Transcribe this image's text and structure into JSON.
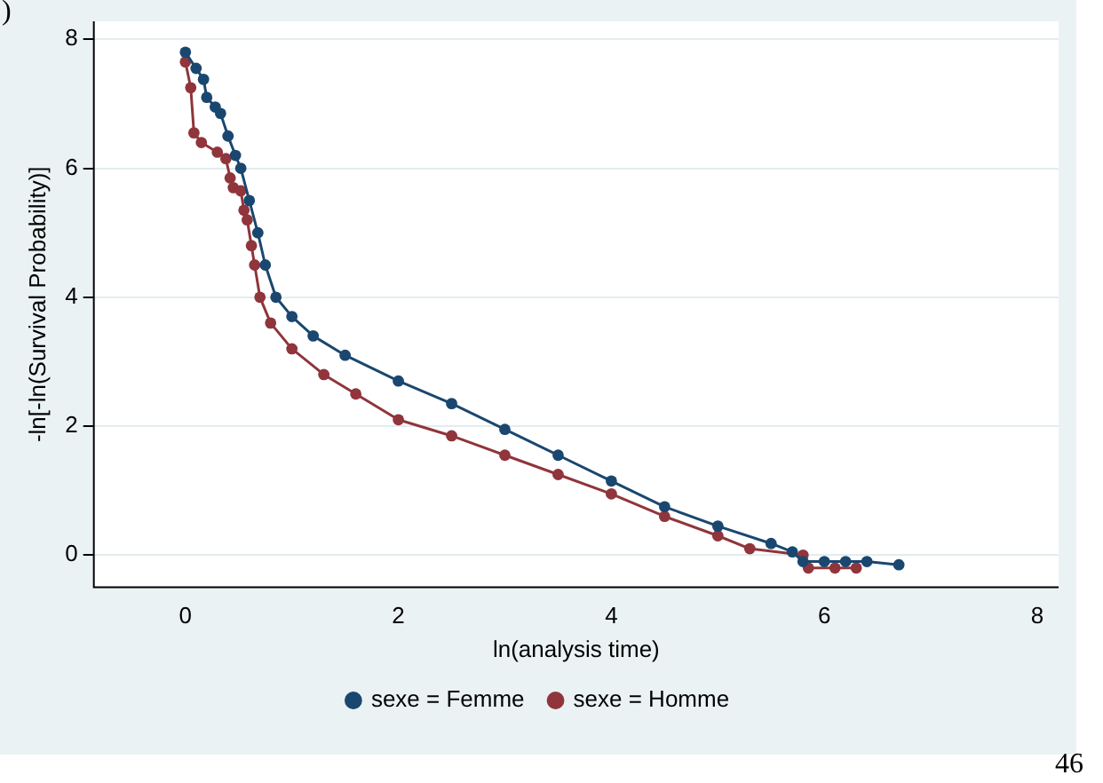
{
  "chart_data": {
    "type": "line",
    "xlabel": "ln(analysis time)",
    "ylabel": "-ln[-ln(Survival Probability)]",
    "xlim": [
      -0.86,
      8.2
    ],
    "xticks": [
      0,
      2,
      4,
      6,
      8
    ],
    "ylim": [
      -0.5,
      8.28
    ],
    "yticks": [
      0,
      2,
      4,
      6,
      8
    ],
    "grid": "y",
    "legend": "bottom",
    "marker": "circle",
    "line_style": "solid",
    "annotations": [
      ")",
      "46"
    ],
    "series": [
      {
        "name": "sexe = Femme",
        "color": "#1a476f",
        "x": [
          0,
          0.1,
          0.17,
          0.2,
          0.28,
          0.33,
          0.4,
          0.47,
          0.52,
          0.6,
          0.68,
          0.75,
          0.85,
          1.0,
          1.2,
          1.5,
          2.0,
          2.5,
          3.0,
          3.5,
          4.0,
          4.5,
          5.0,
          5.5,
          5.7,
          5.8,
          6.0,
          6.2,
          6.4,
          6.7
        ],
        "values": [
          7.8,
          7.55,
          7.38,
          7.1,
          6.95,
          6.85,
          6.5,
          6.2,
          6.0,
          5.5,
          5.0,
          4.5,
          4.0,
          3.7,
          3.4,
          3.1,
          2.7,
          2.35,
          1.95,
          1.55,
          1.15,
          0.75,
          0.45,
          0.18,
          0.05,
          -0.1,
          -0.1,
          -0.1,
          -0.1,
          -0.15
        ]
      },
      {
        "name": "sexe = Homme",
        "color": "#90353b",
        "x": [
          0,
          0.05,
          0.08,
          0.15,
          0.3,
          0.38,
          0.42,
          0.45,
          0.52,
          0.55,
          0.58,
          0.62,
          0.65,
          0.7,
          0.8,
          1.0,
          1.3,
          1.6,
          2.0,
          2.5,
          3.0,
          3.5,
          4.0,
          4.5,
          5.0,
          5.3,
          5.8,
          5.85,
          6.1,
          6.3
        ],
        "values": [
          7.65,
          7.25,
          6.55,
          6.4,
          6.25,
          6.15,
          5.85,
          5.7,
          5.65,
          5.35,
          5.2,
          4.8,
          4.5,
          4.0,
          3.6,
          3.2,
          2.8,
          2.5,
          2.1,
          1.85,
          1.55,
          1.25,
          0.95,
          0.6,
          0.3,
          0.1,
          0.0,
          -0.2,
          -0.2,
          -0.2
        ]
      }
    ]
  }
}
